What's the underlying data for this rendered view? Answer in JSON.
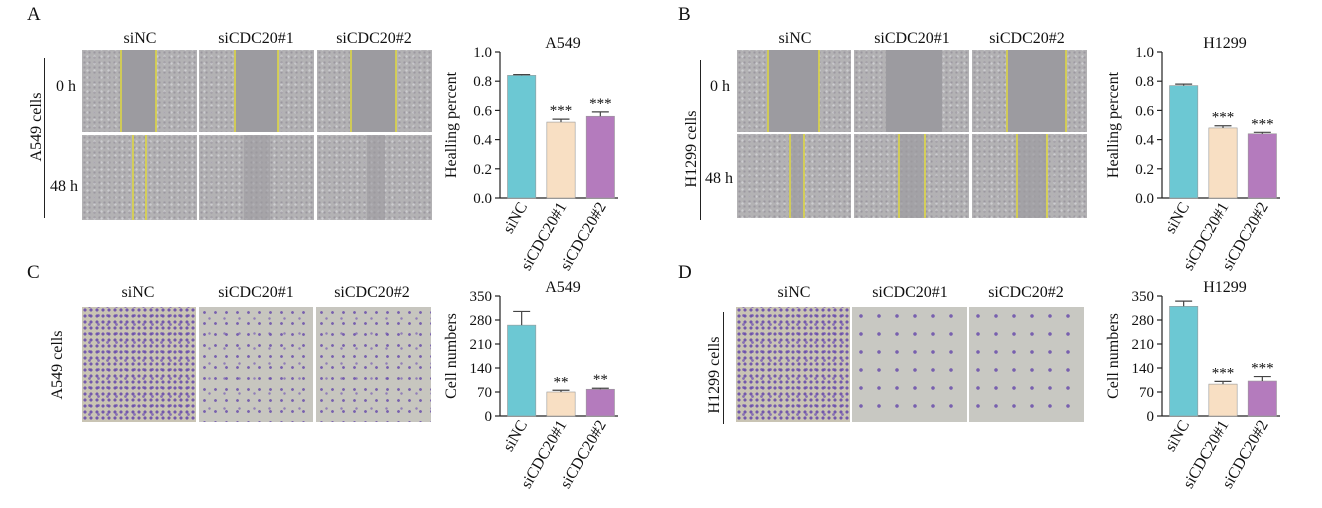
{
  "panels": [
    {
      "label": "A",
      "cols": [
        "siNC",
        "siCDC20#1",
        "siCDC20#2"
      ],
      "side": "A549 cells",
      "rows": [
        "0 h",
        "48 h"
      ]
    },
    {
      "label": "B",
      "cols": [
        "siNC",
        "siCDC20#1",
        "siCDC20#2"
      ],
      "side": "H1299 cells",
      "rows": [
        "0 h",
        "48 h"
      ]
    },
    {
      "label": "C",
      "cols": [
        "siNC",
        "siCDC20#1",
        "siCDC20#2"
      ],
      "side": "A549 cells",
      "rows": []
    },
    {
      "label": "D",
      "cols": [
        "siNC",
        "siCDC20#1",
        "siCDC20#2"
      ],
      "side": "H1299 cells",
      "rows": []
    }
  ],
  "colors": {
    "siNC": "#6cc8d3",
    "siCDC20#1": "#f8dfc3",
    "siCDC20#2": "#b47bbd"
  },
  "chart_data": [
    {
      "type": "bar",
      "title": "A549",
      "ylabel": "Healling percent",
      "categories": [
        "siNC",
        "siCDC20#1",
        "siCDC20#2"
      ],
      "values": [
        0.84,
        0.52,
        0.56
      ],
      "errors": [
        0.005,
        0.02,
        0.03
      ],
      "sig": [
        "",
        "***",
        "***"
      ],
      "ylim": [
        0,
        1.0
      ],
      "yticks": [
        "0.0",
        "0.2",
        "0.4",
        "0.6",
        "0.8",
        "1.0"
      ]
    },
    {
      "type": "bar",
      "title": "H1299",
      "ylabel": "Healling percent",
      "categories": [
        "siNC",
        "siCDC20#1",
        "siCDC20#2"
      ],
      "values": [
        0.77,
        0.48,
        0.44
      ],
      "errors": [
        0.01,
        0.015,
        0.01
      ],
      "sig": [
        "",
        "***",
        "***"
      ],
      "ylim": [
        0,
        1.0
      ],
      "yticks": [
        "0.0",
        "0.2",
        "0.4",
        "0.6",
        "0.8",
        "1.0"
      ]
    },
    {
      "type": "bar",
      "title": "A549",
      "ylabel": "Cell numbers",
      "categories": [
        "siNC",
        "siCDC20#1",
        "siCDC20#2"
      ],
      "values": [
        265,
        70,
        78
      ],
      "errors": [
        40,
        5,
        3
      ],
      "sig": [
        "",
        "**",
        "**"
      ],
      "ylim": [
        0,
        350
      ],
      "yticks": [
        "0",
        "70",
        "140",
        "210",
        "280",
        "350"
      ]
    },
    {
      "type": "bar",
      "title": "H1299",
      "ylabel": "Cell numbers",
      "categories": [
        "siNC",
        "siCDC20#1",
        "siCDC20#2"
      ],
      "values": [
        320,
        93,
        102
      ],
      "errors": [
        15,
        8,
        13
      ],
      "sig": [
        "",
        "***",
        "***"
      ],
      "ylim": [
        0,
        350
      ],
      "yticks": [
        "0",
        "70",
        "140",
        "210",
        "280",
        "350"
      ]
    }
  ]
}
